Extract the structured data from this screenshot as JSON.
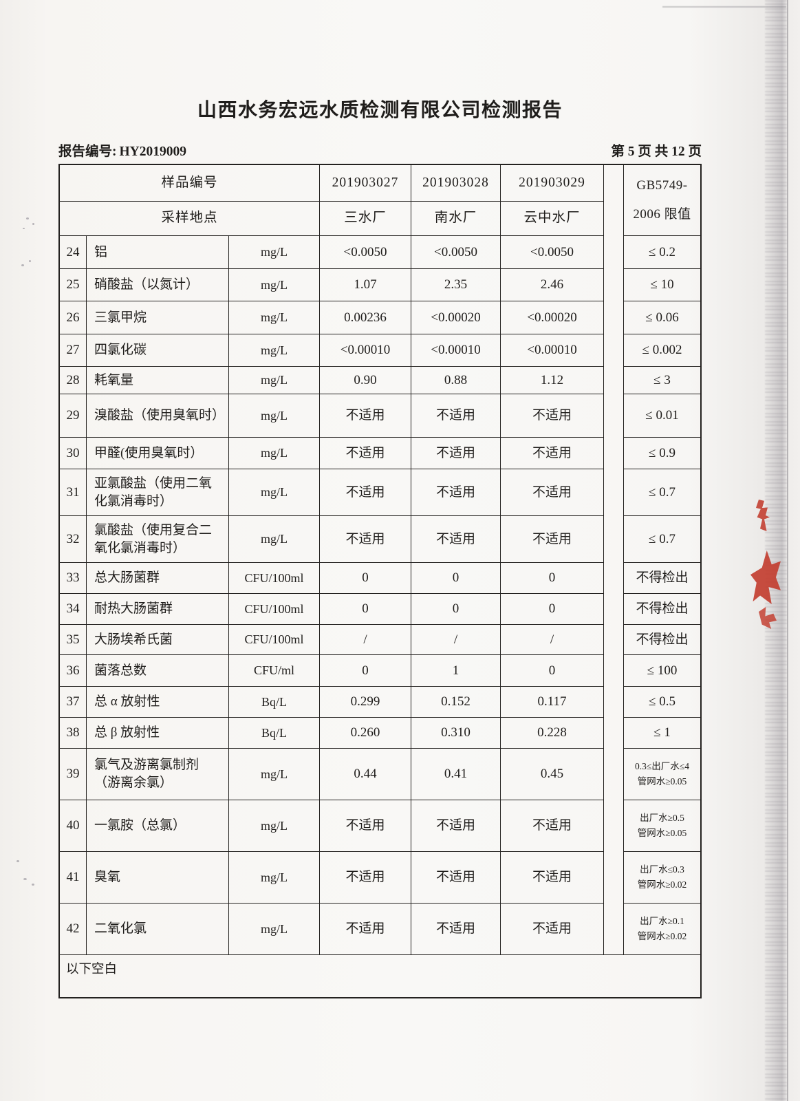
{
  "colors": {
    "ink": "#1f1d1b",
    "border": "#242220",
    "paper": "#f7f5f2",
    "stamp_red": "#c23b2c"
  },
  "page": {
    "title": "山西水务宏远水质检测有限公司检测报告",
    "report_no_label": "报告编号:",
    "report_no_value": "HY2019009",
    "page_indicator": "第 5 页 共 12 页"
  },
  "table": {
    "header": {
      "sample_no_label": "样品编号",
      "location_label": "采样地点",
      "sample_ids": [
        "201903027",
        "201903028",
        "201903029"
      ],
      "locations": [
        "三水厂",
        "南水厂",
        "云中水厂"
      ],
      "limit_title_line1": "GB5749-",
      "limit_title_line2": "2006 限值"
    },
    "rows": [
      {
        "no": "24",
        "name": "铝",
        "unit": "mg/L",
        "values": [
          "<0.0050",
          "<0.0050",
          "<0.0050"
        ],
        "limit": "≤ 0.2"
      },
      {
        "no": "25",
        "name": "硝酸盐（以氮计）",
        "unit": "mg/L",
        "values": [
          "1.07",
          "2.35",
          "2.46"
        ],
        "limit": "≤ 10"
      },
      {
        "no": "26",
        "name": "三氯甲烷",
        "unit": "mg/L",
        "values": [
          "0.00236",
          "<0.00020",
          "<0.00020"
        ],
        "limit": "≤ 0.06"
      },
      {
        "no": "27",
        "name": "四氯化碳",
        "unit": "mg/L",
        "values": [
          "<0.00010",
          "<0.00010",
          "<0.00010"
        ],
        "limit": "≤ 0.002"
      },
      {
        "no": "28",
        "name": "耗氧量",
        "unit": "mg/L",
        "values": [
          "0.90",
          "0.88",
          "1.12"
        ],
        "limit": "≤ 3"
      },
      {
        "no": "29",
        "name": "溴酸盐（使用臭氧时）",
        "unit": "mg/L",
        "values": [
          "不适用",
          "不适用",
          "不适用"
        ],
        "limit": "≤ 0.01"
      },
      {
        "no": "30",
        "name": "甲醛(使用臭氧时）",
        "unit": "mg/L",
        "values": [
          "不适用",
          "不适用",
          "不适用"
        ],
        "limit": "≤ 0.9"
      },
      {
        "no": "31",
        "name": "亚氯酸盐（使用二氧化氯消毒时）",
        "unit": "mg/L",
        "values": [
          "不适用",
          "不适用",
          "不适用"
        ],
        "limit": "≤ 0.7"
      },
      {
        "no": "32",
        "name": "氯酸盐（使用复合二氧化氯消毒时）",
        "unit": "mg/L",
        "values": [
          "不适用",
          "不适用",
          "不适用"
        ],
        "limit": "≤ 0.7"
      },
      {
        "no": "33",
        "name": "总大肠菌群",
        "unit": "CFU/100ml",
        "values": [
          "0",
          "0",
          "0"
        ],
        "limit": "不得检出"
      },
      {
        "no": "34",
        "name": "耐热大肠菌群",
        "unit": "CFU/100ml",
        "values": [
          "0",
          "0",
          "0"
        ],
        "limit": "不得检出"
      },
      {
        "no": "35",
        "name": "大肠埃希氏菌",
        "unit": "CFU/100ml",
        "values": [
          "/",
          "/",
          "/"
        ],
        "limit": "不得检出"
      },
      {
        "no": "36",
        "name": "菌落总数",
        "unit": "CFU/ml",
        "values": [
          "0",
          "1",
          "0"
        ],
        "limit": "≤ 100"
      },
      {
        "no": "37",
        "name": "总 α 放射性",
        "unit": "Bq/L",
        "values": [
          "0.299",
          "0.152",
          "0.117"
        ],
        "limit": "≤ 0.5"
      },
      {
        "no": "38",
        "name": "总 β 放射性",
        "unit": "Bq/L",
        "values": [
          "0.260",
          "0.310",
          "0.228"
        ],
        "limit": "≤ 1"
      },
      {
        "no": "39",
        "name": "氯气及游离氯制剂（游离余氯）",
        "unit": "mg/L",
        "values": [
          "0.44",
          "0.41",
          "0.45"
        ],
        "limit": "0.3≤出厂水≤4",
        "limit2": "管网水≥0.05"
      },
      {
        "no": "40",
        "name": "一氯胺（总氯）",
        "unit": "mg/L",
        "values": [
          "不适用",
          "不适用",
          "不适用"
        ],
        "limit": "出厂水≥0.5",
        "limit2": "管网水≥0.05"
      },
      {
        "no": "41",
        "name": "臭氧",
        "unit": "mg/L",
        "values": [
          "不适用",
          "不适用",
          "不适用"
        ],
        "limit": "出厂水≤0.3",
        "limit2": "管网水≥0.02"
      },
      {
        "no": "42",
        "name": "二氧化氯",
        "unit": "mg/L",
        "values": [
          "不适用",
          "不适用",
          "不适用"
        ],
        "limit": "出厂水≥0.1",
        "limit2": "管网水≥0.02"
      }
    ],
    "footer_note": "以下空白"
  }
}
